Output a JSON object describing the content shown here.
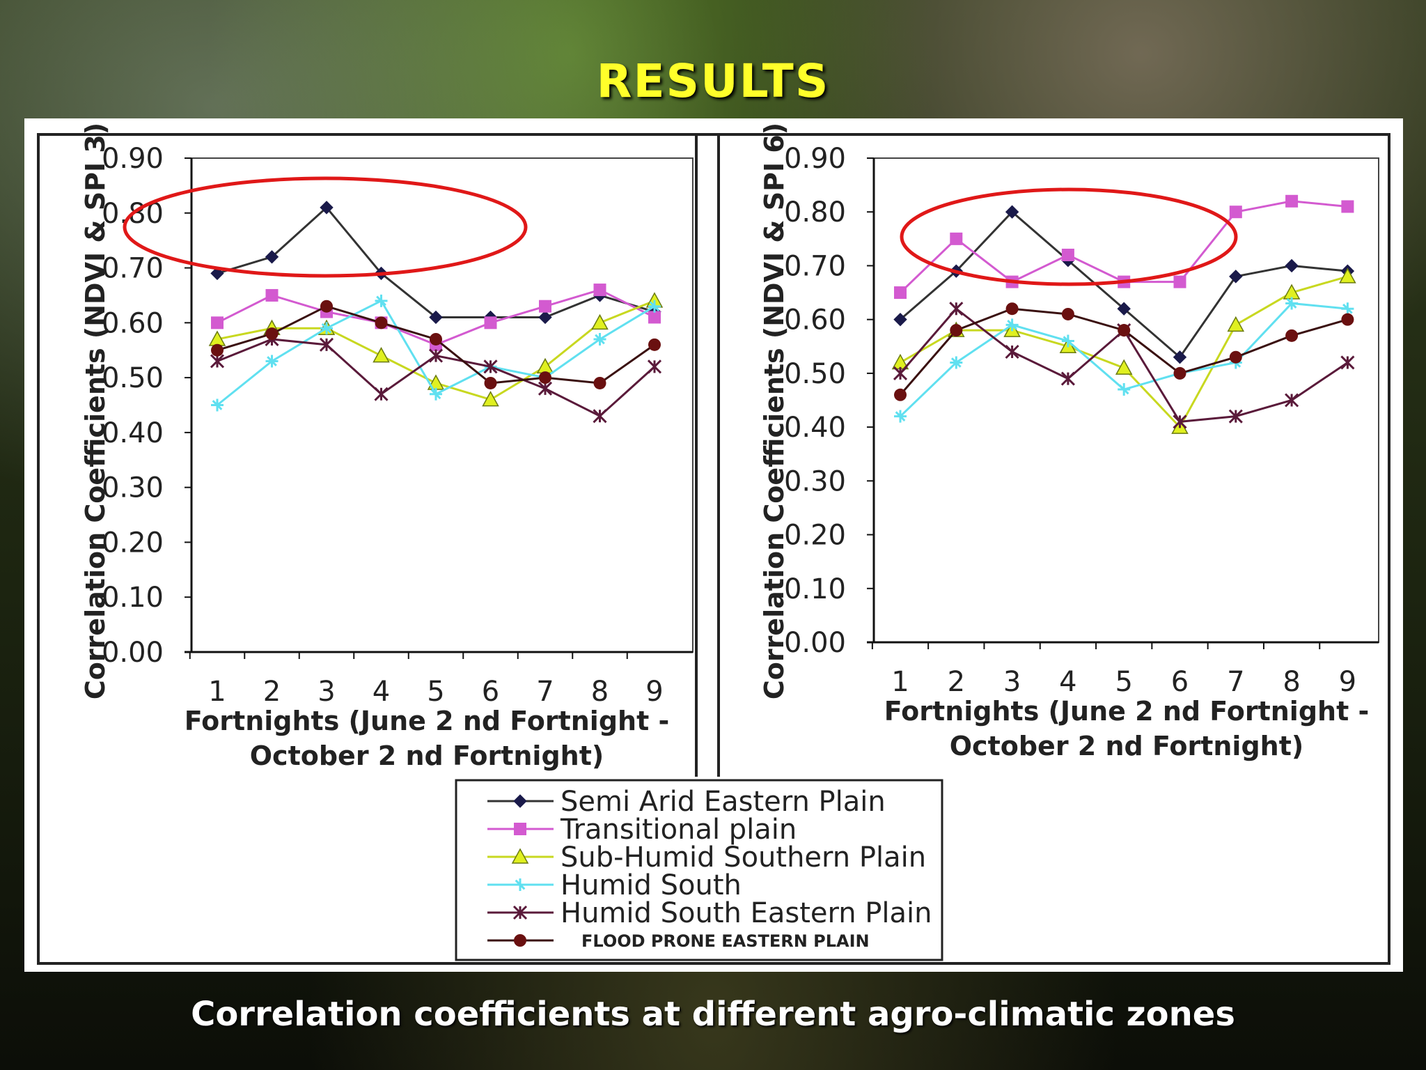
{
  "slide": {
    "title": "RESULTS",
    "caption": "Correlation coefficients at different agro-climatic zones"
  },
  "chart_data": [
    {
      "type": "line",
      "xlabel": "Fortnights (June 2 nd Fortnight - October 2 nd Fortnight)",
      "ylabel": "Correlation Coefficients (NDVI & SPI 3)",
      "x": [
        1,
        2,
        3,
        4,
        5,
        6,
        7,
        8,
        9
      ],
      "ylim": [
        0,
        0.9
      ],
      "yticks": [
        "0.00",
        "0.10",
        "0.20",
        "0.30",
        "0.40",
        "0.50",
        "0.60",
        "0.70",
        "0.80",
        "0.90"
      ],
      "grid": false,
      "series": [
        {
          "name": "Semi Arid Eastern Plain",
          "values": [
            0.69,
            0.72,
            0.81,
            0.69,
            0.61,
            0.61,
            0.61,
            0.65,
            0.62
          ]
        },
        {
          "name": "Transitional plain",
          "values": [
            0.6,
            0.65,
            0.62,
            0.6,
            0.56,
            0.6,
            0.63,
            0.66,
            0.61
          ]
        },
        {
          "name": "Sub-Humid Southern Plain",
          "values": [
            0.57,
            0.59,
            0.59,
            0.54,
            0.49,
            0.46,
            0.52,
            0.6,
            0.64
          ]
        },
        {
          "name": "Humid South",
          "values": [
            0.45,
            0.53,
            0.59,
            0.64,
            0.47,
            0.52,
            0.5,
            0.57,
            0.63
          ]
        },
        {
          "name": "Humid South Eastern Plain",
          "values": [
            0.53,
            0.57,
            0.56,
            0.47,
            0.54,
            0.52,
            0.48,
            0.43,
            0.52
          ]
        },
        {
          "name": "FLOOD PRONE EASTERN PLAIN",
          "values": [
            0.55,
            0.58,
            0.63,
            0.6,
            0.57,
            0.49,
            0.5,
            0.49,
            0.56
          ]
        }
      ]
    },
    {
      "type": "line",
      "xlabel": "Fortnights (June 2 nd Fortnight - October 2 nd Fortnight)",
      "ylabel": "Correlation Coefficients (NDVI & SPI 6)",
      "x": [
        1,
        2,
        3,
        4,
        5,
        6,
        7,
        8,
        9
      ],
      "ylim": [
        0,
        0.9
      ],
      "yticks": [
        "0.00",
        "0.10",
        "0.20",
        "0.30",
        "0.40",
        "0.50",
        "0.60",
        "0.70",
        "0.80",
        "0.90"
      ],
      "grid": false,
      "series": [
        {
          "name": "Semi Arid Eastern Plain",
          "values": [
            0.6,
            0.69,
            0.8,
            0.71,
            0.62,
            0.53,
            0.68,
            0.7,
            0.69
          ]
        },
        {
          "name": "Transitional plain",
          "values": [
            0.65,
            0.75,
            0.67,
            0.72,
            0.67,
            0.67,
            0.8,
            0.82,
            0.81
          ]
        },
        {
          "name": "Sub-Humid Southern Plain",
          "values": [
            0.52,
            0.58,
            0.58,
            0.55,
            0.51,
            0.4,
            0.59,
            0.65,
            0.68
          ]
        },
        {
          "name": "Humid South",
          "values": [
            0.42,
            0.52,
            0.59,
            0.56,
            0.47,
            0.5,
            0.52,
            0.63,
            0.62
          ]
        },
        {
          "name": "Humid South Eastern Plain",
          "values": [
            0.5,
            0.62,
            0.54,
            0.49,
            0.58,
            0.41,
            0.42,
            0.45,
            0.52
          ]
        },
        {
          "name": "FLOOD PRONE EASTERN PLAIN",
          "values": [
            0.46,
            0.58,
            0.62,
            0.61,
            0.58,
            0.5,
            0.53,
            0.57,
            0.6
          ]
        }
      ]
    }
  ],
  "legend": [
    {
      "label": "Semi Arid Eastern Plain",
      "color": "#1a1a4a",
      "line": "#333333",
      "marker": "diamond"
    },
    {
      "label": "Transitional plain",
      "color": "#d35ad0",
      "line": "#d35ad0",
      "marker": "square"
    },
    {
      "label": "Sub-Humid Southern Plain",
      "color": "#e0f020",
      "line": "#c8d820",
      "marker": "triangle"
    },
    {
      "label": "Humid South",
      "color": "#60e0f0",
      "line": "#60e0f0",
      "marker": "star"
    },
    {
      "label": "Humid South Eastern Plain",
      "color": "#5a1a3a",
      "line": "#5a1a3a",
      "marker": "x"
    },
    {
      "label": "FLOOD PRONE EASTERN PLAIN",
      "color": "#6a1010",
      "line": "#3a1010",
      "marker": "circle"
    }
  ],
  "highlight_color": "#e01818"
}
